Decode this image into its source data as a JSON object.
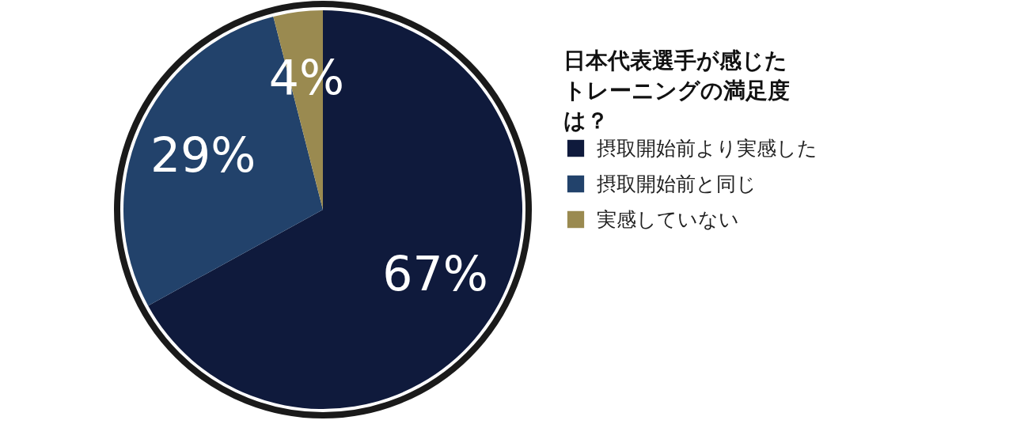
{
  "chart_data": {
    "type": "pie",
    "title": "日本代表選手が感じたトレーニングの満足度は？",
    "categories": [
      "摂取開始前より実感した",
      "摂取開始前と同じ",
      "実感していない"
    ],
    "values": [
      67,
      29,
      4
    ],
    "value_labels": [
      "67%",
      "29%",
      "4%"
    ],
    "colors": [
      "#0f1a3c",
      "#22426b",
      "#9a8a50"
    ],
    "legend": "right"
  }
}
